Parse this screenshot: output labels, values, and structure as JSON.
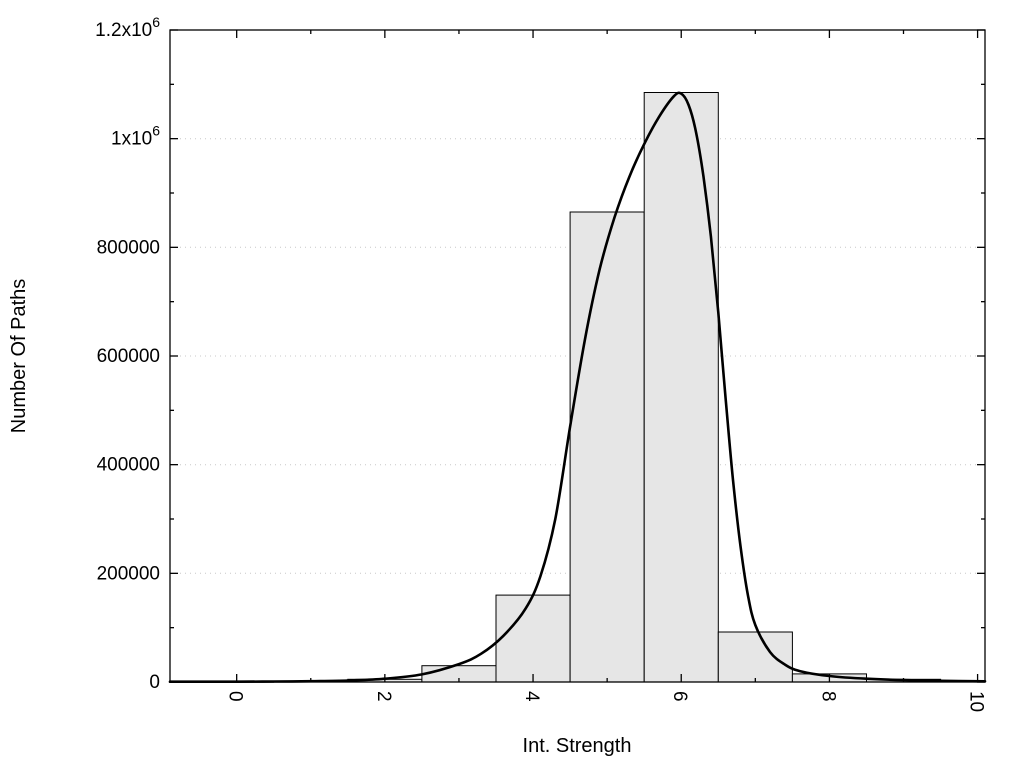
{
  "chart_data": {
    "type": "bar",
    "title": "",
    "xlabel": "Int. Strength",
    "ylabel": "Number Of Paths",
    "xlim": [
      -0.9,
      10.1
    ],
    "ylim": [
      0,
      1200000
    ],
    "bin_width": 1,
    "grid": {
      "on": true,
      "style": "dotted",
      "values": [
        200000,
        400000,
        600000,
        800000,
        1000000
      ]
    },
    "legend": "none",
    "bars": [
      {
        "x": 0,
        "value": 300
      },
      {
        "x": 1,
        "value": 1200
      },
      {
        "x": 2,
        "value": 5000
      },
      {
        "x": 3,
        "value": 30000
      },
      {
        "x": 4,
        "value": 160000
      },
      {
        "x": 5,
        "value": 865000
      },
      {
        "x": 6,
        "value": 1085000
      },
      {
        "x": 7,
        "value": 92000
      },
      {
        "x": 8,
        "value": 15000
      },
      {
        "x": 9,
        "value": 5000
      }
    ],
    "curve": [
      [
        -0.9,
        500
      ],
      [
        0,
        600
      ],
      [
        0.5,
        900
      ],
      [
        1,
        1500
      ],
      [
        1.5,
        2800
      ],
      [
        2,
        6000
      ],
      [
        2.5,
        14000
      ],
      [
        3,
        33000
      ],
      [
        3.3,
        52000
      ],
      [
        3.6,
        85000
      ],
      [
        3.9,
        135000
      ],
      [
        4.1,
        195000
      ],
      [
        4.3,
        300000
      ],
      [
        4.5,
        470000
      ],
      [
        4.7,
        630000
      ],
      [
        4.9,
        760000
      ],
      [
        5.1,
        855000
      ],
      [
        5.3,
        930000
      ],
      [
        5.5,
        990000
      ],
      [
        5.7,
        1040000
      ],
      [
        5.9,
        1078000
      ],
      [
        6.0,
        1083000
      ],
      [
        6.1,
        1062000
      ],
      [
        6.2,
        1012000
      ],
      [
        6.3,
        930000
      ],
      [
        6.4,
        820000
      ],
      [
        6.5,
        680000
      ],
      [
        6.6,
        520000
      ],
      [
        6.7,
        370000
      ],
      [
        6.8,
        250000
      ],
      [
        6.9,
        160000
      ],
      [
        7.0,
        105000
      ],
      [
        7.2,
        55000
      ],
      [
        7.4,
        32000
      ],
      [
        7.6,
        20000
      ],
      [
        8.0,
        11000
      ],
      [
        8.5,
        6000
      ],
      [
        9.0,
        3500
      ],
      [
        9.5,
        2200
      ],
      [
        10.1,
        1200
      ]
    ],
    "xticks": {
      "major": [
        0,
        2,
        4,
        6,
        8,
        10
      ],
      "minor": [
        1,
        3,
        5,
        7,
        9
      ]
    },
    "yticks": {
      "major": [
        0,
        200000,
        400000,
        600000,
        800000,
        1000000,
        1200000
      ],
      "minor": [
        100000,
        300000,
        500000,
        700000,
        900000,
        1100000
      ]
    },
    "xtick_labels": [
      {
        "v": 0,
        "t": "0"
      },
      {
        "v": 2,
        "t": "2"
      },
      {
        "v": 4,
        "t": "4"
      },
      {
        "v": 6,
        "t": "6"
      },
      {
        "v": 8,
        "t": "8"
      },
      {
        "v": 10,
        "t": "10"
      }
    ],
    "ytick_labels": [
      {
        "v": 0,
        "t": "0",
        "sup": ""
      },
      {
        "v": 200000,
        "t": "200000",
        "sup": ""
      },
      {
        "v": 400000,
        "t": "400000",
        "sup": ""
      },
      {
        "v": 600000,
        "t": "600000",
        "sup": ""
      },
      {
        "v": 800000,
        "t": "800000",
        "sup": ""
      },
      {
        "v": 1000000,
        "t": "1x10",
        "sup": "6"
      },
      {
        "v": 1200000,
        "t": "1.2x10",
        "sup": "6"
      }
    ],
    "colors": {
      "background": "#ffffff",
      "bar_fill": "#e6e6e6",
      "bar_stroke": "#000000",
      "curve": "#000000",
      "grid": "#c8c8c8",
      "axis": "#000000"
    }
  }
}
